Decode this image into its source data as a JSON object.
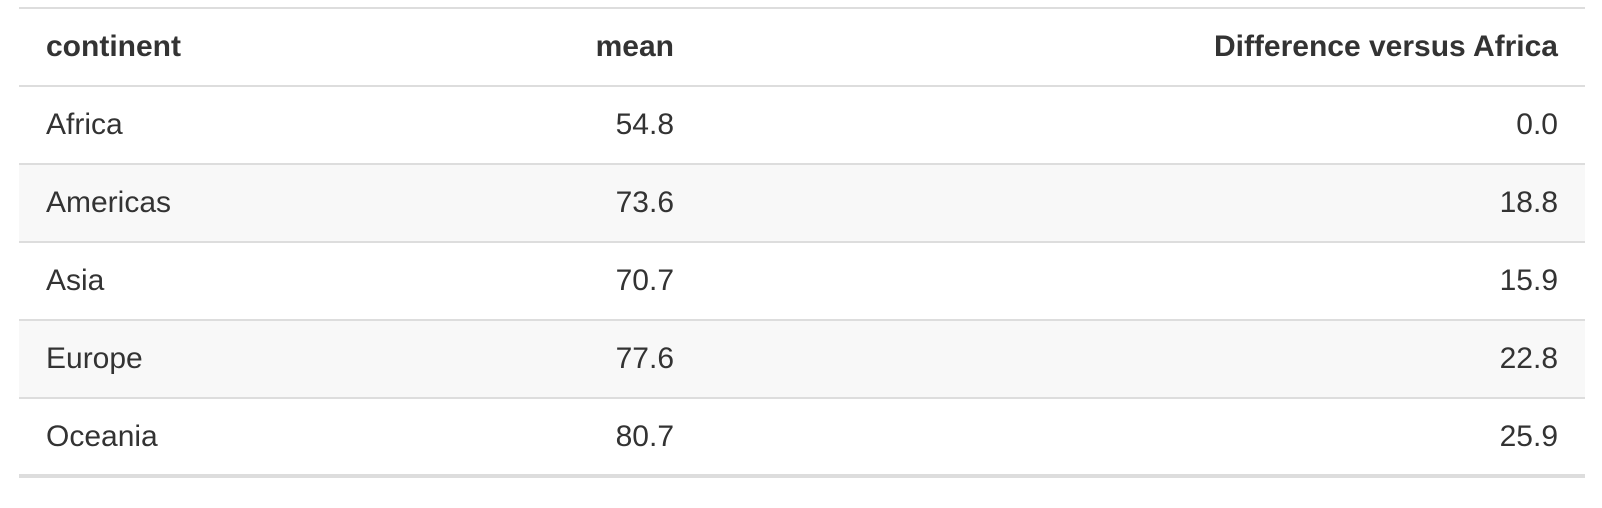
{
  "table": {
    "columns": [
      "continent",
      "mean",
      "Difference versus Africa"
    ],
    "rows": [
      [
        "Africa",
        "54.8",
        "0.0"
      ],
      [
        "Americas",
        "73.6",
        "18.8"
      ],
      [
        "Asia",
        "70.7",
        "15.9"
      ],
      [
        "Europe",
        "77.6",
        "22.8"
      ],
      [
        "Oceania",
        "80.7",
        "25.9"
      ]
    ]
  }
}
